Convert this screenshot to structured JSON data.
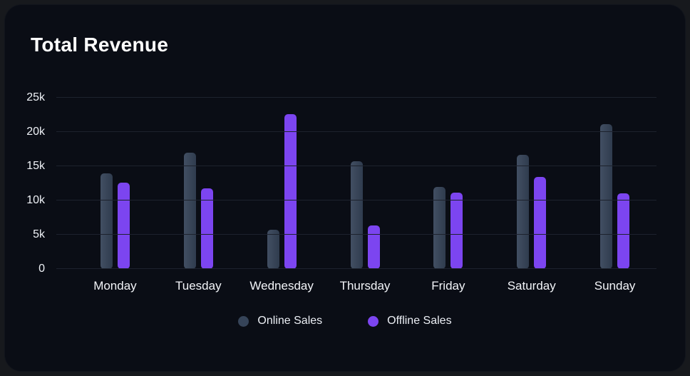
{
  "card": {
    "title": "Total Revenue"
  },
  "chart_data": {
    "type": "bar",
    "title": "Total Revenue",
    "xlabel": "",
    "ylabel": "",
    "unit": "k",
    "ylim": [
      0,
      25
    ],
    "grid": true,
    "legend_position": "bottom",
    "categories": [
      "Monday",
      "Tuesday",
      "Wednesday",
      "Thursday",
      "Friday",
      "Saturday",
      "Sunday"
    ],
    "series": [
      {
        "name": "Online Sales",
        "color": "#364459",
        "values": [
          14.0,
          17.0,
          5.7,
          15.7,
          12.0,
          16.7,
          21.1
        ]
      },
      {
        "name": "Offline Sales",
        "color": "#7C45F0",
        "values": [
          12.6,
          11.8,
          22.6,
          6.4,
          11.1,
          13.4,
          11.0
        ]
      }
    ],
    "yticks": [
      {
        "label": "0",
        "value": 0
      },
      {
        "label": "5k",
        "value": 5
      },
      {
        "label": "10k",
        "value": 10
      },
      {
        "label": "15k",
        "value": 15
      },
      {
        "label": "20k",
        "value": 20
      },
      {
        "label": "25k",
        "value": 25
      }
    ]
  },
  "colors": {
    "page_background": "#17191d",
    "card_background": "#0a0d15",
    "gridline": "#1d222d",
    "text": "#ffffff",
    "online_bar": "#364459",
    "offline_bar": "#7C45F0"
  }
}
